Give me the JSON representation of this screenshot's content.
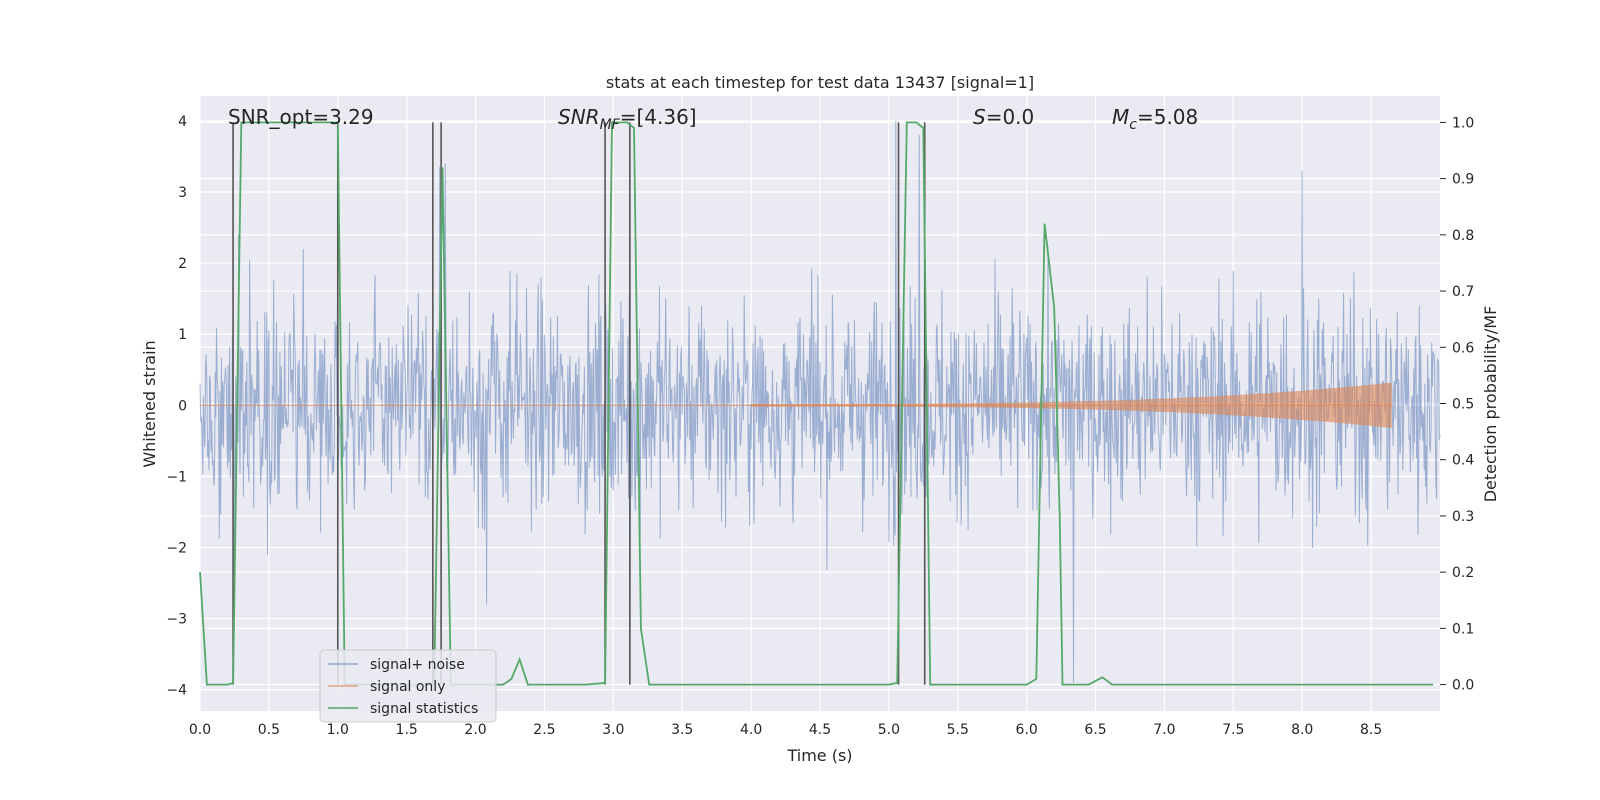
{
  "chart_data": {
    "type": "line",
    "title": "stats at each timestep for test data 13437 [signal=1]",
    "xlabel": "Time (s)",
    "ylabel": "Whitened strain",
    "ylabel_right": "Detection probability/MF",
    "xlim": [
      0.0,
      9.0
    ],
    "ylim": [
      -4.3,
      4.35
    ],
    "ylim_right": [
      -0.047,
      1.047
    ],
    "x_ticks": [
      "0.0",
      "0.5",
      "1.0",
      "1.5",
      "2.0",
      "2.5",
      "3.0",
      "3.5",
      "4.0",
      "4.5",
      "5.0",
      "5.5",
      "6.0",
      "6.5",
      "7.0",
      "7.5",
      "8.0",
      "8.5"
    ],
    "y_ticks": [
      "4",
      "3",
      "2",
      "1",
      "0",
      "−1",
      "−2",
      "−3",
      "−4"
    ],
    "y_tick_values": [
      4,
      3,
      2,
      1,
      0,
      -1,
      -2,
      -3,
      -4
    ],
    "y_ticks_right": [
      "1.0",
      "0.9",
      "0.8",
      "0.7",
      "0.6",
      "0.5",
      "0.4",
      "0.3",
      "0.2",
      "0.1",
      "0.0"
    ],
    "y_tick_values_right": [
      1.0,
      0.9,
      0.8,
      0.7,
      0.6,
      0.5,
      0.4,
      0.3,
      0.2,
      0.1,
      0.0
    ],
    "grid": true,
    "legend_position": "bottom-left",
    "annotations": {
      "snr_opt": "SNR_opt=3.29",
      "snr_mf_base": "SNR",
      "snr_mf_sub": "MF",
      "snr_mf_value": "=[4.36]",
      "s_sym": "S",
      "s_value": "=0.0",
      "mc_base": "M",
      "mc_sub": "c",
      "mc_value": "=5.08"
    },
    "series": [
      {
        "name": "signal+ noise",
        "color": "#4c72b0",
        "axis": "left",
        "description_samples": "whitened noise with std ~1, peaks near +-3.4",
        "spike_x": [
          0.25,
          0.28,
          1.0,
          1.74,
          1.78,
          2.08,
          3.12,
          5.05,
          5.22,
          6.34,
          8.0
        ],
        "spike_y": [
          -2.6,
          2.4,
          3.2,
          3.35,
          3.4,
          -2.8,
          -3.6,
          4.0,
          3.8,
          -3.9,
          3.3
        ]
      },
      {
        "name": "signal only",
        "color": "#dd8452",
        "axis": "left",
        "chirp_start": 4.0,
        "chirp_end": 8.65,
        "chirp_max_amplitude": 0.3
      },
      {
        "name": "signal statistics",
        "color": "#55a868",
        "axis": "right",
        "x": [
          0.0,
          0.05,
          0.2,
          0.24,
          0.3,
          0.4,
          0.6,
          0.8,
          0.95,
          1.0,
          1.05,
          1.6,
          1.7,
          1.76,
          1.82,
          2.0,
          2.2,
          2.26,
          2.32,
          2.38,
          2.6,
          2.8,
          2.94,
          2.99,
          3.1,
          3.15,
          3.2,
          3.26,
          3.5,
          4.0,
          4.5,
          5.0,
          5.06,
          5.13,
          5.2,
          5.25,
          5.3,
          5.6,
          6.0,
          6.07,
          6.13,
          6.2,
          6.24,
          6.26,
          6.35,
          6.45,
          6.55,
          6.62,
          6.7,
          7.0,
          7.5,
          8.0,
          8.5,
          8.95
        ],
        "y": [
          0.2,
          0.0,
          0.0,
          0.003,
          1.0,
          1.0,
          1.0,
          1.0,
          1.0,
          1.0,
          0.0,
          0.0,
          0.0,
          0.92,
          0.0,
          0.0,
          0.0,
          0.01,
          0.045,
          0.0,
          0.0,
          0.0,
          0.003,
          1.0,
          1.0,
          0.99,
          0.1,
          0.0,
          0.0,
          0.0,
          0.0,
          0.0,
          0.003,
          1.0,
          1.0,
          0.99,
          0.0,
          0.0,
          0.0,
          0.01,
          0.82,
          0.67,
          0.3,
          0.0,
          0.0,
          0.0,
          0.013,
          0.0,
          0.0,
          0.0,
          0.0,
          0.0,
          0.0,
          0.0
        ]
      }
    ],
    "vertical_markers": {
      "color": "#555555",
      "x": [
        0.24,
        1.0,
        1.69,
        1.75,
        2.94,
        3.12,
        5.07,
        5.26
      ]
    }
  }
}
